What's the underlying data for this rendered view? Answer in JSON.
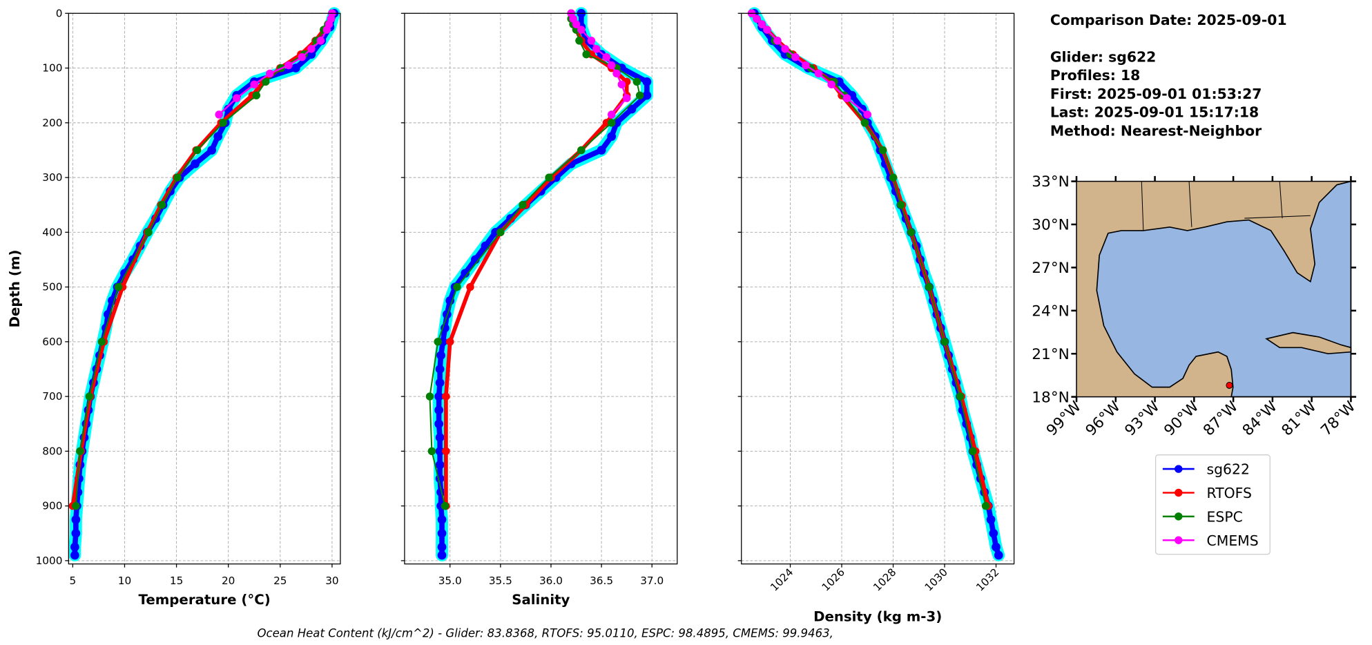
{
  "chart_data": [
    {
      "type": "line",
      "xlabel": "Temperature (°C)",
      "ylabel": "Depth (m)",
      "ytick_labels": true,
      "xlim": [
        4.6,
        30.8
      ],
      "xticks": [
        5,
        10,
        15,
        20,
        25,
        30
      ],
      "ylim": [
        0,
        1006
      ],
      "invert_y": true,
      "yticks": [
        0,
        100,
        200,
        300,
        400,
        500,
        600,
        700,
        800,
        900,
        1000
      ],
      "grid": true,
      "series": [
        {
          "name": "sg622",
          "color": "#0000ff",
          "band_color": "#00ffff",
          "depth": [
            0,
            25,
            50,
            75,
            100,
            125,
            150,
            175,
            200,
            225,
            250,
            275,
            300,
            325,
            350,
            375,
            400,
            425,
            450,
            475,
            500,
            525,
            550,
            575,
            600,
            625,
            650,
            675,
            700,
            725,
            750,
            775,
            800,
            825,
            850,
            875,
            900,
            925,
            950,
            975,
            990
          ],
          "values": [
            30.2,
            29.8,
            29.0,
            28.0,
            26.5,
            22.5,
            20.8,
            20.0,
            19.7,
            19.0,
            18.4,
            16.8,
            15.3,
            14.4,
            13.7,
            13.0,
            12.2,
            11.5,
            10.8,
            10.0,
            9.3,
            8.8,
            8.4,
            8.2,
            7.9,
            7.6,
            7.3,
            7.0,
            6.7,
            6.5,
            6.3,
            6.1,
            5.9,
            5.7,
            5.6,
            5.5,
            5.4,
            5.3,
            5.3,
            5.2,
            5.2
          ]
        },
        {
          "name": "RTOFS",
          "color": "#ff0000",
          "depth": [
            0,
            10,
            20,
            30,
            50,
            75,
            100,
            125,
            150,
            200,
            250,
            300,
            350,
            400,
            500,
            600,
            700,
            800,
            900
          ],
          "values": [
            30.0,
            29.9,
            29.6,
            29.2,
            28.4,
            27.0,
            25.0,
            23.4,
            22.3,
            19.3,
            16.9,
            15.0,
            13.5,
            12.2,
            9.8,
            8.0,
            6.7,
            5.8,
            5.0
          ]
        },
        {
          "name": "ESPC",
          "color": "#008000",
          "depth": [
            0,
            10,
            20,
            30,
            50,
            75,
            100,
            125,
            150,
            200,
            250,
            300,
            350,
            400,
            500,
            600,
            700,
            800,
            900
          ],
          "values": [
            30.0,
            29.9,
            29.6,
            29.2,
            28.5,
            27.3,
            25.1,
            23.6,
            22.7,
            19.5,
            17.0,
            15.1,
            13.6,
            12.3,
            9.4,
            7.8,
            6.6,
            5.7,
            5.3
          ]
        },
        {
          "name": "CMEMS",
          "color": "#ff00ff",
          "depth": [
            0,
            10,
            20,
            30,
            50,
            65,
            80,
            95,
            110,
            130,
            155,
            185
          ],
          "values": [
            30.0,
            29.9,
            29.7,
            29.5,
            28.9,
            28.0,
            27.1,
            25.8,
            24.0,
            22.5,
            20.8,
            19.1
          ]
        }
      ]
    },
    {
      "type": "line",
      "xlabel": "Salinity",
      "ytick_labels": false,
      "xlim": [
        34.55,
        37.25
      ],
      "xticks": [
        {
          "value": 35,
          "label": "35.0"
        },
        35.5,
        {
          "value": 36,
          "label": "36.0"
        },
        36.5,
        {
          "value": 37,
          "label": "37.0"
        }
      ],
      "ylim": [
        0,
        1006
      ],
      "invert_y": true,
      "yticks": [
        0,
        100,
        200,
        300,
        400,
        500,
        600,
        700,
        800,
        900,
        1000
      ],
      "grid": true,
      "series": [
        {
          "name": "sg622",
          "color": "#0000ff",
          "band_color": "#00ffff",
          "depth": [
            0,
            25,
            50,
            75,
            100,
            125,
            150,
            175,
            200,
            225,
            250,
            275,
            300,
            325,
            350,
            375,
            400,
            425,
            450,
            475,
            500,
            525,
            550,
            575,
            600,
            625,
            650,
            675,
            700,
            725,
            750,
            775,
            800,
            825,
            850,
            875,
            900,
            925,
            950,
            975,
            990
          ],
          "values": [
            36.3,
            36.3,
            36.35,
            36.5,
            36.7,
            36.95,
            36.95,
            36.8,
            36.65,
            36.6,
            36.5,
            36.2,
            36.05,
            35.9,
            35.75,
            35.6,
            35.45,
            35.35,
            35.25,
            35.15,
            35.05,
            35.0,
            34.97,
            34.95,
            34.93,
            34.91,
            34.9,
            34.9,
            34.89,
            34.89,
            34.89,
            34.9,
            34.9,
            34.9,
            34.9,
            34.91,
            34.91,
            34.92,
            34.92,
            34.92,
            34.92
          ]
        },
        {
          "name": "RTOFS",
          "color": "#ff0000",
          "depth": [
            0,
            10,
            20,
            30,
            50,
            75,
            100,
            125,
            150,
            200,
            250,
            300,
            350,
            400,
            500,
            600,
            700,
            800,
            900
          ],
          "values": [
            36.2,
            36.2,
            36.22,
            36.25,
            36.3,
            36.4,
            36.6,
            36.75,
            36.75,
            36.55,
            36.3,
            36.0,
            35.75,
            35.5,
            35.2,
            35.0,
            34.96,
            34.96,
            34.96
          ]
        },
        {
          "name": "ESPC",
          "color": "#008000",
          "depth": [
            0,
            10,
            20,
            30,
            50,
            75,
            100,
            125,
            150,
            200,
            250,
            300,
            350,
            400,
            500,
            600,
            700,
            800,
            900
          ],
          "values": [
            36.2,
            36.2,
            36.22,
            36.25,
            36.28,
            36.35,
            36.65,
            36.85,
            36.88,
            36.6,
            36.3,
            35.98,
            35.72,
            35.5,
            35.07,
            34.88,
            34.8,
            34.82,
            34.95
          ]
        },
        {
          "name": "CMEMS",
          "color": "#ff00ff",
          "depth": [
            0,
            10,
            20,
            30,
            50,
            65,
            80,
            95,
            110,
            130,
            155,
            185
          ],
          "values": [
            36.2,
            36.22,
            36.25,
            36.3,
            36.4,
            36.45,
            36.55,
            36.6,
            36.65,
            36.7,
            36.75,
            36.6
          ]
        }
      ]
    },
    {
      "type": "line",
      "xlabel": "Density (kg m-3)",
      "ytick_labels": false,
      "rotate_xticks": true,
      "xlim": [
        1022.1,
        1032.7
      ],
      "xticks": [
        1024,
        1026,
        1028,
        1030,
        1032
      ],
      "ylim": [
        0,
        1006
      ],
      "invert_y": true,
      "yticks": [
        0,
        100,
        200,
        300,
        400,
        500,
        600,
        700,
        800,
        900,
        1000
      ],
      "grid": true,
      "series": [
        {
          "name": "sg622",
          "color": "#0000ff",
          "band_color": "#00ffff",
          "depth": [
            0,
            25,
            50,
            75,
            100,
            125,
            150,
            175,
            200,
            225,
            250,
            275,
            300,
            325,
            350,
            375,
            400,
            425,
            450,
            475,
            500,
            525,
            550,
            575,
            600,
            625,
            650,
            675,
            700,
            725,
            750,
            775,
            800,
            825,
            850,
            875,
            900,
            925,
            950,
            975,
            990
          ],
          "values": [
            1022.6,
            1022.9,
            1023.3,
            1023.8,
            1024.7,
            1025.9,
            1026.4,
            1026.8,
            1027.0,
            1027.3,
            1027.5,
            1027.7,
            1027.9,
            1028.1,
            1028.3,
            1028.5,
            1028.7,
            1028.9,
            1029.05,
            1029.2,
            1029.4,
            1029.55,
            1029.7,
            1029.85,
            1030.0,
            1030.15,
            1030.3,
            1030.45,
            1030.6,
            1030.7,
            1030.85,
            1031.0,
            1031.1,
            1031.25,
            1031.4,
            1031.55,
            1031.7,
            1031.8,
            1031.9,
            1032.0,
            1032.1
          ]
        },
        {
          "name": "RTOFS",
          "color": "#ff0000",
          "depth": [
            0,
            10,
            20,
            30,
            50,
            75,
            100,
            125,
            150,
            200,
            250,
            300,
            350,
            400,
            500,
            600,
            700,
            800,
            900
          ],
          "values": [
            1022.5,
            1022.7,
            1022.9,
            1023.1,
            1023.5,
            1024.1,
            1024.9,
            1025.6,
            1026.0,
            1026.9,
            1027.6,
            1028.0,
            1028.35,
            1028.7,
            1029.4,
            1030.0,
            1030.65,
            1031.2,
            1031.7
          ]
        },
        {
          "name": "ESPC",
          "color": "#008000",
          "depth": [
            0,
            10,
            20,
            30,
            50,
            75,
            100,
            125,
            150,
            200,
            250,
            300,
            350,
            400,
            500,
            600,
            700,
            800,
            900
          ],
          "values": [
            1022.5,
            1022.7,
            1022.9,
            1023.1,
            1023.4,
            1024.0,
            1024.8,
            1025.7,
            1026.1,
            1026.9,
            1027.6,
            1028.0,
            1028.3,
            1028.7,
            1029.4,
            1030.0,
            1030.6,
            1031.1,
            1031.6
          ]
        },
        {
          "name": "CMEMS",
          "color": "#ff00ff",
          "depth": [
            0,
            10,
            20,
            30,
            50,
            65,
            80,
            95,
            110,
            130,
            155,
            185
          ],
          "values": [
            1022.5,
            1022.7,
            1022.9,
            1023.1,
            1023.5,
            1023.8,
            1024.2,
            1024.6,
            1025.1,
            1025.6,
            1026.2,
            1027.0
          ]
        }
      ]
    },
    {
      "type": "map",
      "xlim": [
        -99,
        -78
      ],
      "ylim": [
        18,
        33
      ],
      "xticks": [
        {
          "value": -99,
          "label": "99°W"
        },
        {
          "value": -96,
          "label": "96°W"
        },
        {
          "value": -93,
          "label": "93°W"
        },
        {
          "value": -90,
          "label": "90°W"
        },
        {
          "value": -87,
          "label": "87°W"
        },
        {
          "value": -84,
          "label": "84°W"
        },
        {
          "value": -81,
          "label": "81°W"
        },
        {
          "value": -78,
          "label": "78°W"
        }
      ],
      "yticks": [
        {
          "value": 33,
          "label": "33°N"
        },
        {
          "value": 30,
          "label": "30°N"
        },
        {
          "value": 27,
          "label": "27°N"
        },
        {
          "value": 24,
          "label": "24°N"
        },
        {
          "value": 21,
          "label": "21°N"
        },
        {
          "value": 18,
          "label": "18°N"
        }
      ],
      "point": {
        "lon": -87.3,
        "lat": 18.8,
        "color": "#ff0000"
      }
    }
  ],
  "info": {
    "comparison": "Comparison Date: 2025-09-01",
    "lines": [
      "Glider: sg622",
      "Profiles: 18",
      "First: 2025-09-01 01:53:27",
      "Last: 2025-09-01 15:17:18",
      "Method: Nearest-Neighbor"
    ]
  },
  "footer": "Ocean Heat Content (kJ/cm^2) - Glider: 83.8368,  RTOFS: 95.0110,  ESPC: 98.4895,  CMEMS: 99.9463,"
}
